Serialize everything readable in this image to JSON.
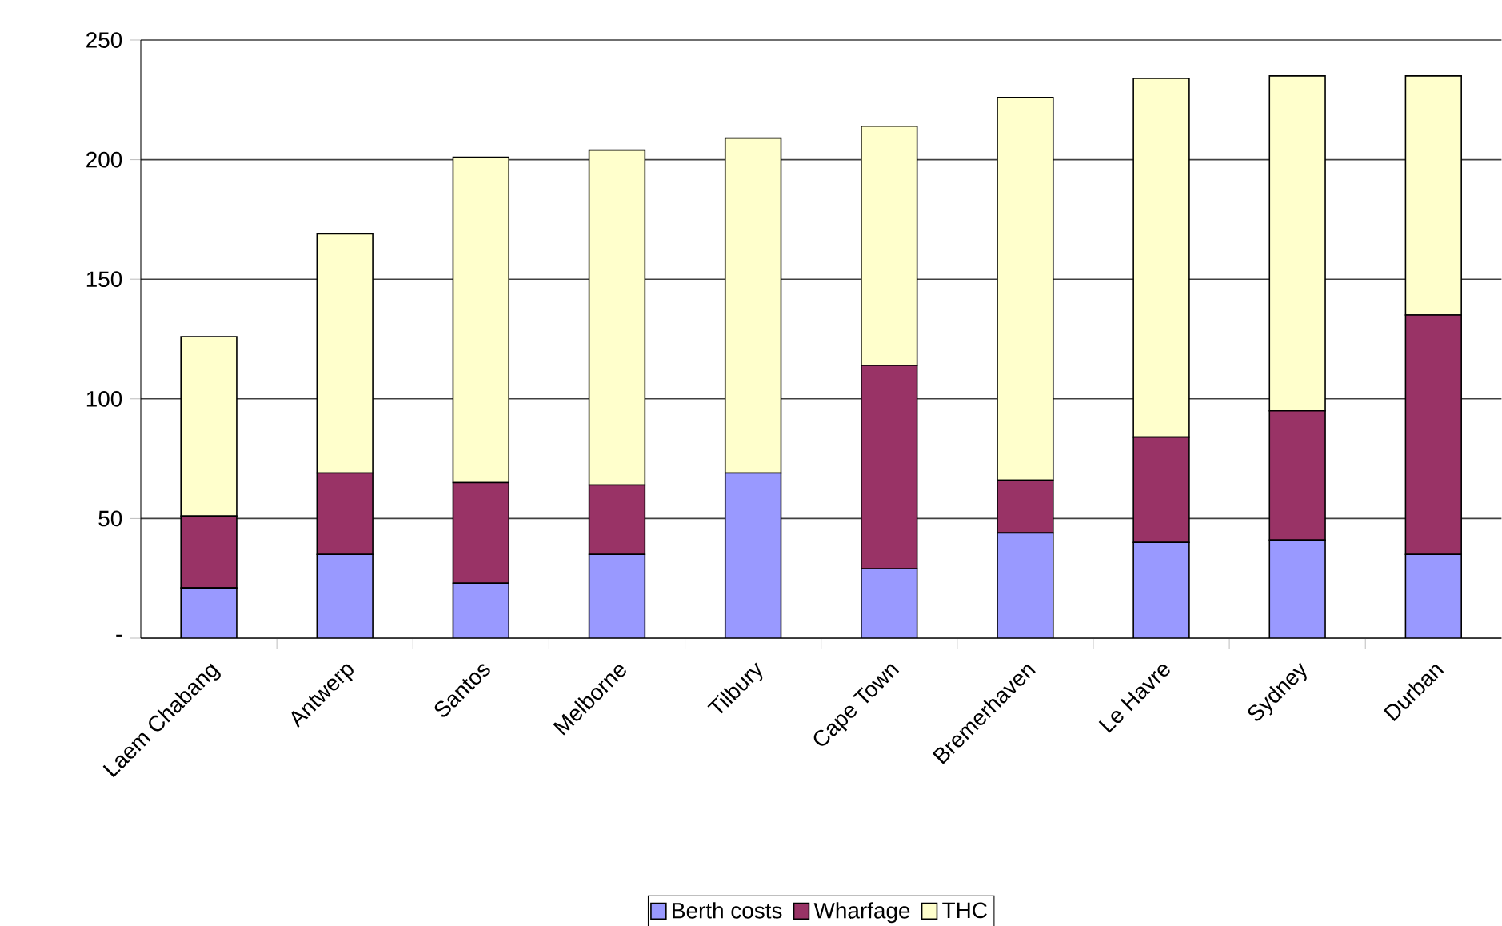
{
  "chart_data": {
    "type": "bar",
    "stacked": true,
    "categories": [
      "Laem Chabang",
      "Antwerp",
      "Santos",
      "Melborne",
      "Tilbury",
      "Cape Town",
      "Bremerhaven",
      "Le Havre",
      "Sydney",
      "Durban"
    ],
    "series": [
      {
        "name": "Berth costs",
        "color": "#9999ff",
        "values": [
          21,
          35,
          23,
          35,
          69,
          29,
          44,
          40,
          41,
          35
        ]
      },
      {
        "name": "Wharfage",
        "color": "#993366",
        "values": [
          30,
          34,
          42,
          29,
          0,
          85,
          22,
          44,
          54,
          100
        ]
      },
      {
        "name": "THC",
        "color": "#ffffcc",
        "values": [
          75,
          100,
          136,
          140,
          140,
          100,
          160,
          150,
          140,
          100
        ]
      }
    ],
    "ylim": [
      0,
      250
    ],
    "yticks": [
      {
        "value": 0,
        "label": "-"
      },
      50,
      100,
      150,
      200,
      250
    ],
    "grid": "y",
    "legend": "bottom"
  }
}
